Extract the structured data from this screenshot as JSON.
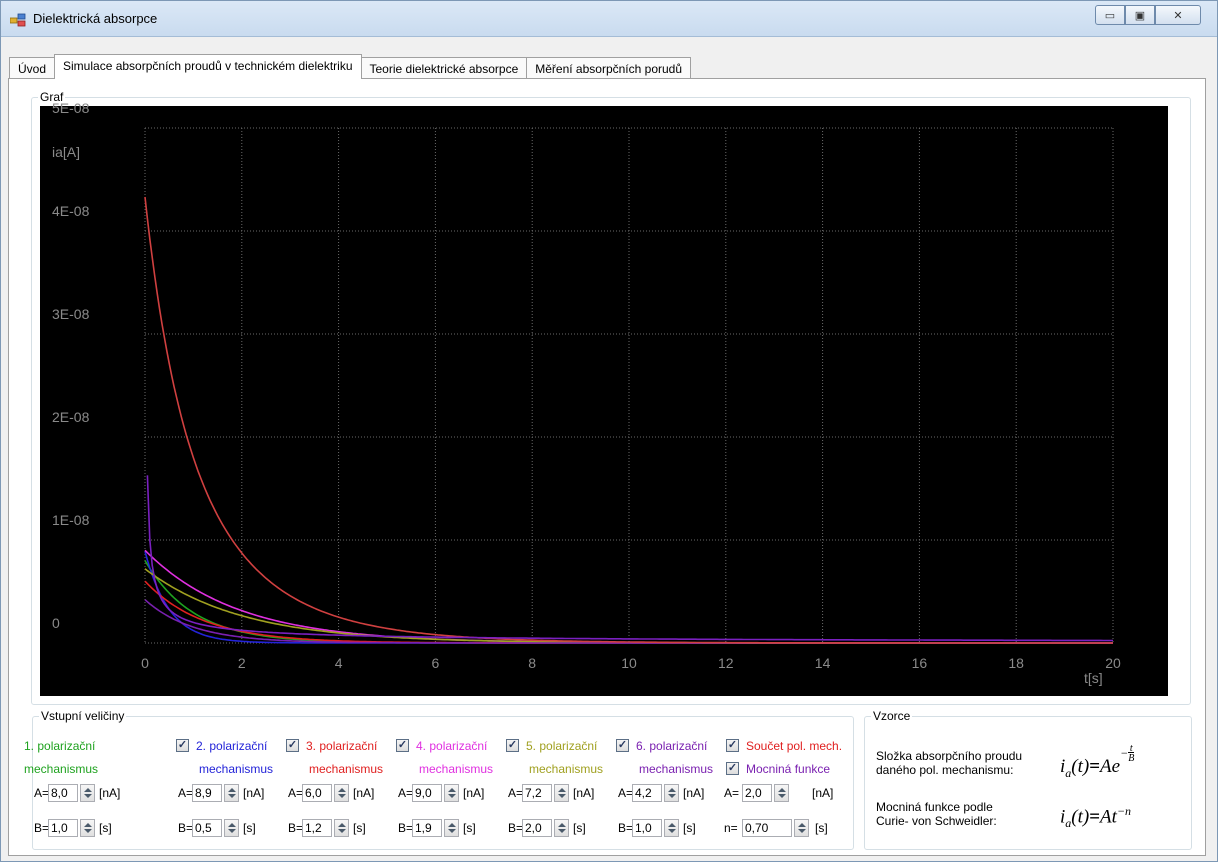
{
  "window": {
    "title": "Dielektrická absorpce",
    "min_label": "▭",
    "max_label": "▣",
    "close_label": "✕"
  },
  "tabs": [
    {
      "label": "Úvod"
    },
    {
      "label": "Simulace absorpčních proudů v technickém dielektriku"
    },
    {
      "label": "Teorie dielektrické absorpce"
    },
    {
      "label": "Měření absorpčních porudů"
    }
  ],
  "graph_group": {
    "title": "Graf"
  },
  "chart_data": {
    "type": "line",
    "ylabel": "ia[A]",
    "xlabel": "t[s]",
    "xlim": [
      0,
      20
    ],
    "ylim": [
      0,
      5e-08
    ],
    "xticks": [
      "0",
      "2",
      "4",
      "6",
      "8",
      "10",
      "12",
      "14",
      "16",
      "18",
      "20"
    ],
    "yticks": [
      "0",
      "1E-08",
      "2E-08",
      "3E-08",
      "4E-08",
      "5E-08"
    ],
    "background": "#000000",
    "grid": true,
    "series": [
      {
        "color": "#1fa21f",
        "A_nA": 8.0,
        "B_s": 1.0,
        "kind": "exp"
      },
      {
        "color": "#2323d8",
        "A_nA": 8.9,
        "B_s": 0.5,
        "kind": "exp"
      },
      {
        "color": "#e02020",
        "A_nA": 6.0,
        "B_s": 1.2,
        "kind": "exp"
      },
      {
        "color": "#e030e0",
        "A_nA": 9.0,
        "B_s": 1.9,
        "kind": "exp"
      },
      {
        "color": "#a0a020",
        "A_nA": 7.2,
        "B_s": 2.0,
        "kind": "exp"
      },
      {
        "color": "#7a20b0",
        "A_nA": 4.2,
        "B_s": 1.0,
        "kind": "exp"
      },
      {
        "color": "#d04040",
        "kind": "sum"
      },
      {
        "color": "#7a20c0",
        "A_nA": 2.0,
        "n": 0.7,
        "kind": "power"
      }
    ]
  },
  "inputs_group": {
    "title": "Vstupní veličiny",
    "mechanisms": [
      {
        "line1": "1. polarizační",
        "line2": "mechanismus",
        "color": "#1fa21f",
        "checked": false,
        "A": "8,0",
        "B": "1,0",
        "a_label": "A=",
        "b_label": "B=",
        "a_unit": "[nA]",
        "b_unit": "[s]"
      },
      {
        "line1": "2. polarizační",
        "line2": "mechanismus",
        "color": "#2323d8",
        "checked": true,
        "A": "8,9",
        "B": "0,5",
        "a_label": "A=",
        "b_label": "B=",
        "a_unit": "[nA]",
        "b_unit": "[s]"
      },
      {
        "line1": "3. polarizační",
        "line2": "mechanismus",
        "color": "#e02020",
        "checked": true,
        "A": "6,0",
        "B": "1,2",
        "a_label": "A=",
        "b_label": "B=",
        "a_unit": "[nA]",
        "b_unit": "[s]"
      },
      {
        "line1": "4. polarizační",
        "line2": "mechanismus",
        "color": "#e030e0",
        "checked": true,
        "A": "9,0",
        "B": "1,9",
        "a_label": "A=",
        "b_label": "B=",
        "a_unit": "[nA]",
        "b_unit": "[s]"
      },
      {
        "line1": "5. polarizační",
        "line2": "mechanismus",
        "color": "#a0a020",
        "checked": true,
        "A": "7,2",
        "B": "2,0",
        "a_label": "A=",
        "b_label": "B=",
        "a_unit": "[nA]",
        "b_unit": "[s]"
      },
      {
        "line1": "6. polarizační",
        "line2": "mechanismus",
        "color": "#7a20b0",
        "checked": true,
        "A": "4,2",
        "B": "1,0",
        "a_label": "A=",
        "b_label": "B=",
        "a_unit": "[nA]",
        "b_unit": "[s]"
      }
    ],
    "sum": {
      "label": "Součet pol. mech.",
      "color": "#e02020",
      "checked": true
    },
    "power": {
      "label": "Mocniná funkce",
      "color": "#7a20b0",
      "checked": true,
      "A": "2,0",
      "n": "0,70",
      "a_label": "A=",
      "n_label": "n=",
      "a_unit": "[nA]",
      "n_unit": "[s]"
    }
  },
  "formulas_group": {
    "title": "Vzorce",
    "f1_line1": "Složka absorpčního proudu",
    "f1_line2": "daného pol. mechanismu:",
    "f2_line1": "Mocniná funkce podle",
    "f2_line2": "Curie- von Schweidler:"
  }
}
